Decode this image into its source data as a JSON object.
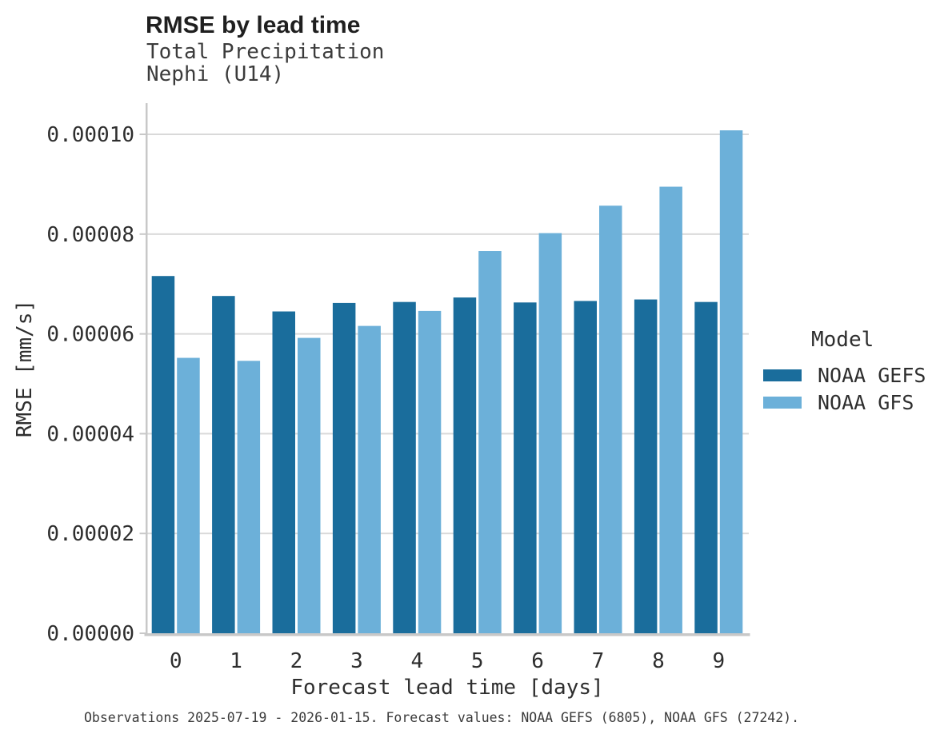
{
  "header": {
    "title": "RMSE by lead time",
    "subtitle_line1": "Total Precipitation",
    "subtitle_line2": "Nephi (U14)"
  },
  "chart_data": {
    "type": "bar",
    "title": "RMSE by lead time",
    "subtitle": [
      "Total Precipitation",
      "Nephi (U14)"
    ],
    "categories": [
      "0",
      "1",
      "2",
      "3",
      "4",
      "5",
      "6",
      "7",
      "8",
      "9"
    ],
    "series": [
      {
        "name": "NOAA GEFS",
        "color": "#1a6d9c",
        "values": [
          7.16e-05,
          6.76e-05,
          6.45e-05,
          6.62e-05,
          6.64e-05,
          6.73e-05,
          6.63e-05,
          6.66e-05,
          6.69e-05,
          6.64e-05
        ]
      },
      {
        "name": "NOAA GFS",
        "color": "#6cb0d9",
        "values": [
          5.52e-05,
          5.46e-05,
          5.92e-05,
          6.16e-05,
          6.46e-05,
          7.66e-05,
          8.02e-05,
          8.57e-05,
          8.95e-05,
          0.0001008
        ]
      }
    ],
    "xlabel": "Forecast lead time [days]",
    "ylabel": "RMSE [mm/s]",
    "ylim": [
      0,
      0.000106
    ],
    "yticks": {
      "values": [
        0,
        2e-05,
        4e-05,
        6e-05,
        8e-05,
        0.0001
      ],
      "labels": [
        "0.00000",
        "0.00002",
        "0.00004",
        "0.00006",
        "0.00008",
        "0.00010"
      ]
    },
    "grid": "horizontal",
    "legend_title": "Model",
    "legend_position": "right",
    "style": {
      "grid_color": "#d9d9d9",
      "axis_color": "#c8c8c8"
    }
  },
  "caption": {
    "text": "Observations 2025-07-19 - 2026-01-15. Forecast values: NOAA GEFS (6805), NOAA GFS (27242)."
  }
}
